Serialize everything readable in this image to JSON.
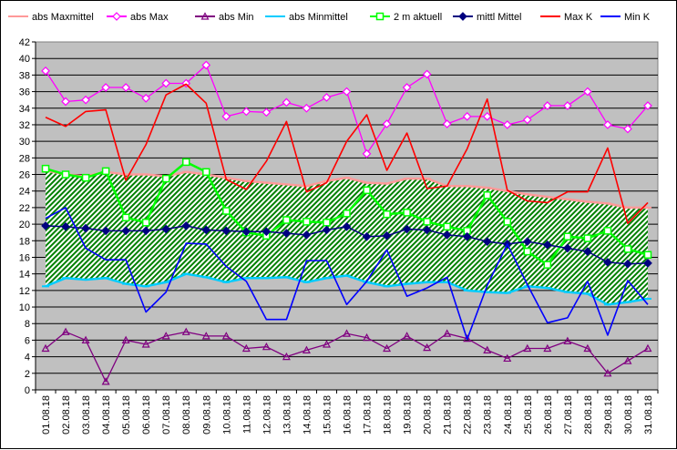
{
  "chart_data": {
    "type": "line",
    "title": "",
    "xlabel": "",
    "ylabel": "",
    "ylim": [
      0,
      42
    ],
    "ytick_step": 2,
    "grid": true,
    "plot_background": "#c0c0c0",
    "legend_position": "top",
    "band": {
      "upper_series": "abs Maxmittel",
      "lower_series": "abs Minmittel",
      "fill": "hatched green"
    },
    "categories": [
      "01.08.18",
      "02.08.18",
      "03.08.18",
      "04.08.18",
      "05.08.18",
      "06.08.18",
      "07.08.18",
      "08.08.18",
      "09.08.18",
      "10.08.18",
      "11.08.18",
      "12.08.18",
      "13.08.18",
      "14.08.18",
      "15.08.18",
      "16.08.18",
      "17.08.18",
      "18.08.18",
      "19.08.18",
      "20.08.18",
      "21.08.18",
      "22.08.18",
      "23.08.18",
      "24.08.18",
      "25.08.18",
      "26.08.18",
      "27.08.18",
      "28.08.18",
      "29.08.18",
      "30.08.18",
      "31.08.18"
    ],
    "series": [
      {
        "name": "abs Maxmittel",
        "color": "#ff9999",
        "marker": "dash",
        "values": [
          26.5,
          26.0,
          25.8,
          26.3,
          26.0,
          26.0,
          25.8,
          26.3,
          26.0,
          25.6,
          25.2,
          25.0,
          24.8,
          24.6,
          25.2,
          25.6,
          25.0,
          24.9,
          25.5,
          25.5,
          24.6,
          24.6,
          24.4,
          24.0,
          23.6,
          23.3,
          23.0,
          22.7,
          22.5,
          22.0,
          22.0
        ]
      },
      {
        "name": "abs Max",
        "color": "#ff00ff",
        "marker": "diamond-open",
        "values": [
          38.5,
          34.8,
          35.0,
          36.5,
          36.5,
          35.2,
          37.0,
          37.0,
          39.2,
          33.0,
          33.6,
          33.5,
          34.7,
          34.0,
          35.3,
          36.0,
          28.5,
          32.1,
          36.5,
          38.1,
          32.1,
          33.0,
          33.0,
          32.0,
          32.6,
          34.3,
          34.3,
          36.0,
          32.0,
          31.5,
          34.3
        ]
      },
      {
        "name": "abs Min",
        "color": "#800080",
        "marker": "triangle-open",
        "values": [
          5.0,
          7.0,
          6.0,
          1.0,
          6.0,
          5.5,
          6.5,
          7.0,
          6.5,
          6.5,
          5.0,
          5.2,
          4.0,
          4.8,
          5.5,
          6.8,
          6.3,
          5.0,
          6.5,
          5.1,
          6.8,
          6.2,
          4.8,
          3.8,
          5.0,
          5.0,
          5.9,
          5.0,
          2.0,
          3.5,
          5.0
        ]
      },
      {
        "name": "abs Minmittel",
        "color": "#00ccff",
        "marker": "dash",
        "values": [
          12.5,
          13.5,
          13.3,
          13.5,
          12.8,
          12.5,
          13.0,
          14.0,
          13.6,
          13.0,
          13.5,
          13.5,
          13.6,
          13.0,
          13.5,
          13.8,
          13.0,
          12.5,
          12.8,
          13.0,
          13.0,
          12.0,
          11.8,
          11.7,
          12.5,
          12.3,
          11.8,
          11.6,
          10.3,
          10.6,
          11.0
        ]
      },
      {
        "name": "2 m aktuell",
        "color": "#00ff00",
        "marker": "square-open",
        "values": [
          26.7,
          26.0,
          25.6,
          26.4,
          20.8,
          20.2,
          25.5,
          27.5,
          26.3,
          21.6,
          19.0,
          18.6,
          20.5,
          20.3,
          20.2,
          21.3,
          24.1,
          21.2,
          21.4,
          20.3,
          19.7,
          19.2,
          23.5,
          20.3,
          16.7,
          15.1,
          18.5,
          18.3,
          19.2,
          17.0,
          16.3
        ]
      },
      {
        "name": "mittl Mittel",
        "color": "#000080",
        "marker": "diamond-filled",
        "values": [
          19.8,
          19.7,
          19.5,
          19.2,
          19.2,
          19.2,
          19.4,
          19.8,
          19.3,
          19.2,
          19.1,
          19.1,
          18.9,
          18.7,
          19.3,
          19.7,
          18.5,
          18.6,
          19.4,
          19.3,
          18.7,
          18.5,
          17.9,
          17.6,
          17.9,
          17.5,
          17.1,
          16.7,
          15.4,
          15.2,
          15.3
        ]
      },
      {
        "name": "Max K",
        "color": "#ff0000",
        "marker": "none",
        "values": [
          32.9,
          31.8,
          33.6,
          33.8,
          25.3,
          29.6,
          35.6,
          36.9,
          34.6,
          25.4,
          24.2,
          27.6,
          32.4,
          23.9,
          25.0,
          30.0,
          33.2,
          26.5,
          31.0,
          24.3,
          24.6,
          29.1,
          35.1,
          24.1,
          22.8,
          22.6,
          23.9,
          23.9,
          29.2,
          20.1,
          22.6
        ]
      },
      {
        "name": "Min K",
        "color": "#0000ff",
        "marker": "none",
        "values": [
          20.7,
          22.0,
          17.1,
          15.7,
          15.7,
          9.4,
          11.8,
          17.7,
          17.6,
          14.9,
          13.1,
          8.5,
          8.5,
          15.6,
          15.6,
          10.3,
          13.1,
          16.9,
          11.3,
          12.3,
          13.6,
          6.1,
          12.6,
          17.6,
          12.7,
          8.1,
          8.7,
          13.1,
          6.6,
          13.2,
          10.3
        ]
      }
    ]
  }
}
